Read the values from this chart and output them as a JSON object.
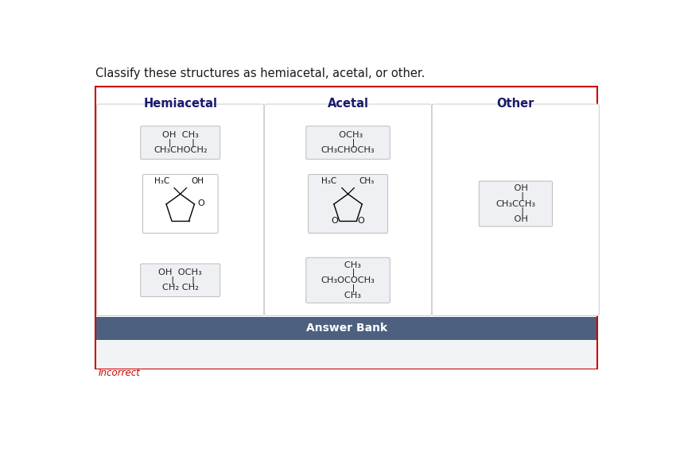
{
  "title": "Classify these structures as hemiacetal, acetal, or other.",
  "title_color": "#1a1a1a",
  "background_color": "#ffffff",
  "outer_border_color": "#cc0000",
  "column_headers": [
    "Hemiacetal",
    "Acetal",
    "Other"
  ],
  "header_color": "#1a1a6e",
  "answer_bank_text": "Answer Bank",
  "answer_bank_bg": "#4d6080",
  "answer_bank_text_color": "#ffffff",
  "incorrect_text": "Incorrect",
  "incorrect_color": "#cc0000",
  "card_bg_light": "#eef0f4",
  "col_box_bg": "#ffffff",
  "answer_area_bg": "#f2f3f5"
}
